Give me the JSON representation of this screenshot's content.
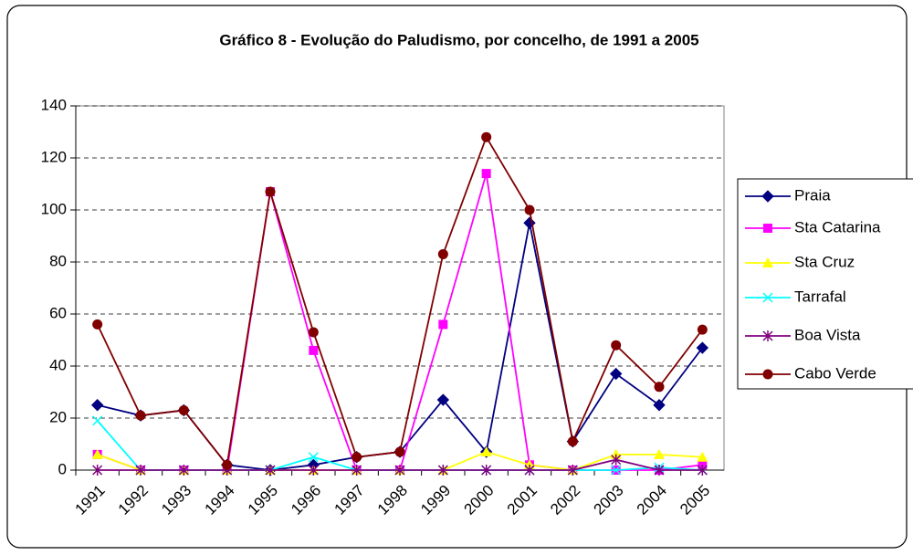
{
  "chart_data": {
    "type": "line",
    "title": "Gráfico 8 - Evolução do Paludismo, por concelho, de 1991 a 2005",
    "categories": [
      "1991",
      "1992",
      "1993",
      "1994",
      "1995",
      "1996",
      "1997",
      "1998",
      "1999",
      "2000",
      "2001",
      "2002",
      "2003",
      "2004",
      "2005"
    ],
    "series": [
      {
        "name": "Praia",
        "color": "#000080",
        "marker": "diamond",
        "values": [
          25,
          21,
          23,
          2,
          0,
          2,
          5,
          7,
          27,
          7,
          95,
          11,
          37,
          25,
          47
        ]
      },
      {
        "name": "Sta Catarina",
        "color": "#ff00ff",
        "marker": "square",
        "values": [
          6,
          0,
          0,
          0,
          107,
          46,
          0,
          0,
          56,
          114,
          2,
          0,
          0,
          0,
          2
        ]
      },
      {
        "name": "Sta Cruz",
        "color": "#ffff00",
        "marker": "triangle",
        "values": [
          6,
          0,
          0,
          0,
          0,
          0,
          0,
          0,
          0,
          7,
          2,
          0,
          6,
          6,
          5
        ]
      },
      {
        "name": "Tarrafal",
        "color": "#00ffff",
        "marker": "x",
        "values": [
          19,
          0,
          0,
          0,
          0,
          5,
          0,
          0,
          0,
          0,
          0,
          0,
          0,
          1,
          0
        ]
      },
      {
        "name": "Boa Vista",
        "color": "#800080",
        "marker": "star",
        "values": [
          0,
          0,
          0,
          0,
          0,
          0,
          0,
          0,
          0,
          0,
          0,
          0,
          4,
          0,
          0
        ]
      },
      {
        "name": "Cabo Verde",
        "color": "#800000",
        "marker": "circle",
        "values": [
          56,
          21,
          23,
          2,
          107,
          53,
          5,
          7,
          83,
          128,
          100,
          11,
          48,
          32,
          54
        ]
      }
    ],
    "ylim": [
      0,
      140
    ],
    "yticks": [
      0,
      20,
      40,
      60,
      80,
      100,
      120,
      140
    ],
    "grid": true,
    "legend": "right"
  }
}
